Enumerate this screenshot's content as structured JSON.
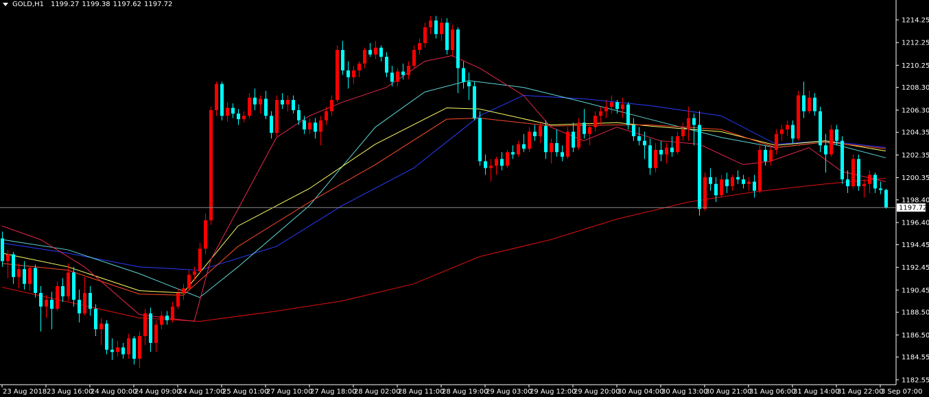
{
  "chart_data": {
    "type": "candlestick",
    "title": "GOLD,H1",
    "up_color": "#ff0000",
    "down_color": "#00ffff",
    "ylim": [
      1182.12,
      1216.0
    ],
    "yticks": [
      1214.25,
      1212.25,
      1210.25,
      {
        "value": 1208.3,
        "label": "1208.30"
      },
      {
        "value": 1206.3,
        "label": "1206.30"
      },
      1204.35,
      1202.35,
      1200.35,
      {
        "value": 1198.4,
        "label": "1198.40"
      },
      {
        "value": 1196.4,
        "label": "1196.40"
      },
      1194.45,
      1192.45,
      1190.45,
      {
        "value": 1188.5,
        "label": "1188.50"
      },
      {
        "value": 1186.5,
        "label": "1186.50"
      },
      1184.55,
      1182.55
    ],
    "xticks": [
      {
        "value": 0,
        "label": "23 Aug 2018"
      },
      {
        "value": 8,
        "label": "23 Aug 16:00"
      },
      {
        "value": 16,
        "label": "24 Aug 00:00"
      },
      {
        "value": 24,
        "label": "24 Aug 09:00"
      },
      {
        "value": 32,
        "label": "24 Aug 17:00"
      },
      {
        "value": 40,
        "label": "25 Aug 01:00"
      },
      {
        "value": 48,
        "label": "27 Aug 10:00"
      },
      {
        "value": 56,
        "label": "27 Aug 18:00"
      },
      {
        "value": 64,
        "label": "28 Aug 02:00"
      },
      {
        "value": 72,
        "label": "28 Aug 11:00"
      },
      {
        "value": 80,
        "label": "28 Aug 19:00"
      },
      {
        "value": 88,
        "label": "29 Aug 03:00"
      },
      {
        "value": 96,
        "label": "29 Aug 12:00"
      },
      {
        "value": 104,
        "label": "29 Aug 20:00"
      },
      {
        "value": 112,
        "label": "30 Aug 04:00"
      },
      {
        "value": 120,
        "label": "30 Aug 13:00"
      },
      {
        "value": 128,
        "label": "30 Aug 21:00"
      },
      {
        "value": 136,
        "label": "31 Aug 06:00"
      },
      {
        "value": 144,
        "label": "31 Aug 14:00"
      },
      {
        "value": 152,
        "label": "31 Aug 22:00"
      },
      {
        "value": 160,
        "label": "3 Sep 07:00"
      }
    ],
    "ohlc": [
      [
        1195.0,
        1195.6,
        1192.5,
        1193.0
      ],
      [
        1193.0,
        1194.0,
        1191.5,
        1193.6
      ],
      [
        1193.6,
        1193.8,
        1191.0,
        1191.6
      ],
      [
        1191.6,
        1192.8,
        1190.6,
        1192.3
      ],
      [
        1192.3,
        1193.0,
        1190.5,
        1191.0
      ],
      [
        1191.0,
        1192.6,
        1190.4,
        1192.4
      ],
      [
        1192.4,
        1192.7,
        1189.8,
        1190.2
      ],
      [
        1190.2,
        1190.8,
        1186.8,
        1189.0
      ],
      [
        1189.0,
        1190.0,
        1188.0,
        1189.6
      ],
      [
        1189.6,
        1190.3,
        1187.0,
        1188.8
      ],
      [
        1188.8,
        1191.2,
        1188.6,
        1190.8
      ],
      [
        1190.8,
        1191.5,
        1189.4,
        1189.9
      ],
      [
        1189.9,
        1192.8,
        1189.5,
        1192.0
      ],
      [
        1192.0,
        1192.5,
        1189.0,
        1189.6
      ],
      [
        1189.6,
        1190.5,
        1187.6,
        1188.4
      ],
      [
        1188.4,
        1191.6,
        1188.2,
        1190.2
      ],
      [
        1190.2,
        1190.8,
        1188.2,
        1188.8
      ],
      [
        1188.8,
        1189.2,
        1186.4,
        1187.0
      ],
      [
        1187.0,
        1188.0,
        1185.6,
        1187.5
      ],
      [
        1187.5,
        1187.8,
        1184.8,
        1185.2
      ],
      [
        1185.2,
        1186.2,
        1184.3,
        1185.0
      ],
      [
        1185.0,
        1186.0,
        1184.6,
        1185.4
      ],
      [
        1185.4,
        1185.8,
        1184.4,
        1184.8
      ],
      [
        1184.8,
        1186.6,
        1184.4,
        1186.2
      ],
      [
        1186.2,
        1186.4,
        1183.9,
        1184.4
      ],
      [
        1184.4,
        1186.8,
        1183.6,
        1186.4
      ],
      [
        1186.4,
        1188.8,
        1185.6,
        1188.4
      ],
      [
        1188.4,
        1188.9,
        1185.0,
        1185.8
      ],
      [
        1185.8,
        1187.8,
        1185.0,
        1187.4
      ],
      [
        1187.4,
        1188.6,
        1187.0,
        1188.2
      ],
      [
        1188.2,
        1188.6,
        1187.4,
        1187.8
      ],
      [
        1187.8,
        1189.4,
        1187.6,
        1189.0
      ],
      [
        1189.0,
        1190.6,
        1188.8,
        1190.2
      ],
      [
        1190.2,
        1191.0,
        1189.6,
        1190.6
      ],
      [
        1190.6,
        1192.2,
        1190.4,
        1191.8
      ],
      [
        1191.8,
        1192.5,
        1191.3,
        1192.1
      ],
      [
        1192.1,
        1194.6,
        1191.9,
        1194.1
      ],
      [
        1194.1,
        1197.2,
        1193.6,
        1196.6
      ],
      [
        1196.6,
        1206.6,
        1196.2,
        1206.3
      ],
      [
        1206.3,
        1208.8,
        1205.8,
        1208.6
      ],
      [
        1208.6,
        1208.8,
        1205.4,
        1205.8
      ],
      [
        1205.8,
        1207.0,
        1205.3,
        1206.5
      ],
      [
        1206.5,
        1206.9,
        1205.6,
        1206.0
      ],
      [
        1206.0,
        1206.4,
        1205.0,
        1205.5
      ],
      [
        1205.5,
        1206.2,
        1205.2,
        1205.8
      ],
      [
        1205.8,
        1207.8,
        1205.6,
        1207.4
      ],
      [
        1207.4,
        1208.2,
        1206.3,
        1206.8
      ],
      [
        1206.8,
        1207.6,
        1206.0,
        1207.3
      ],
      [
        1207.3,
        1208.0,
        1205.5,
        1205.8
      ],
      [
        1205.8,
        1206.2,
        1203.8,
        1204.3
      ],
      [
        1204.3,
        1207.6,
        1204.0,
        1207.2
      ],
      [
        1207.2,
        1207.8,
        1206.4,
        1206.8
      ],
      [
        1206.8,
        1207.6,
        1206.2,
        1207.2
      ],
      [
        1207.2,
        1207.6,
        1206.0,
        1206.3
      ],
      [
        1206.3,
        1206.8,
        1205.0,
        1205.4
      ],
      [
        1205.4,
        1205.8,
        1204.2,
        1204.6
      ],
      [
        1204.6,
        1205.6,
        1204.2,
        1205.2
      ],
      [
        1205.2,
        1205.6,
        1203.8,
        1204.4
      ],
      [
        1204.4,
        1205.8,
        1203.2,
        1205.4
      ],
      [
        1205.4,
        1206.6,
        1205.0,
        1206.2
      ],
      [
        1206.2,
        1207.6,
        1205.8,
        1207.2
      ],
      [
        1207.2,
        1212.0,
        1207.0,
        1211.6
      ],
      [
        1211.6,
        1212.4,
        1209.4,
        1209.8
      ],
      [
        1209.8,
        1210.6,
        1208.2,
        1209.2
      ],
      [
        1209.2,
        1210.2,
        1208.6,
        1209.8
      ],
      [
        1209.8,
        1210.6,
        1209.2,
        1210.4
      ],
      [
        1210.4,
        1211.8,
        1210.0,
        1211.6
      ],
      [
        1211.6,
        1212.2,
        1211.0,
        1211.2
      ],
      [
        1211.2,
        1212.4,
        1210.8,
        1211.8
      ],
      [
        1211.8,
        1212.0,
        1210.6,
        1211.0
      ],
      [
        1211.0,
        1211.4,
        1209.2,
        1209.6
      ],
      [
        1209.6,
        1210.2,
        1208.4,
        1208.8
      ],
      [
        1208.8,
        1210.0,
        1208.4,
        1209.7
      ],
      [
        1209.7,
        1210.4,
        1209.0,
        1209.4
      ],
      [
        1209.4,
        1210.6,
        1209.0,
        1210.2
      ],
      [
        1210.2,
        1212.0,
        1210.0,
        1211.6
      ],
      [
        1211.6,
        1212.6,
        1211.2,
        1212.2
      ],
      [
        1212.2,
        1214.0,
        1211.8,
        1213.6
      ],
      [
        1213.6,
        1214.6,
        1213.0,
        1214.2
      ],
      [
        1214.2,
        1214.6,
        1212.6,
        1213.0
      ],
      [
        1213.0,
        1214.4,
        1212.4,
        1214.0
      ],
      [
        1214.0,
        1214.4,
        1211.2,
        1211.6
      ],
      [
        1211.6,
        1213.8,
        1211.0,
        1213.4
      ],
      [
        1213.4,
        1213.6,
        1207.8,
        1210.0
      ],
      [
        1210.0,
        1210.6,
        1208.2,
        1208.8
      ],
      [
        1208.8,
        1209.6,
        1207.2,
        1208.4
      ],
      [
        1208.4,
        1208.8,
        1205.4,
        1205.6
      ],
      [
        1205.6,
        1206.2,
        1201.4,
        1201.8
      ],
      [
        1201.8,
        1202.4,
        1200.6,
        1201.2
      ],
      [
        1201.2,
        1202.0,
        1200.0,
        1201.4
      ],
      [
        1201.4,
        1202.2,
        1200.6,
        1202.0
      ],
      [
        1202.0,
        1202.6,
        1201.0,
        1201.4
      ],
      [
        1201.4,
        1202.8,
        1201.2,
        1202.6
      ],
      [
        1202.6,
        1203.2,
        1202.0,
        1202.4
      ],
      [
        1202.4,
        1203.6,
        1202.2,
        1203.3
      ],
      [
        1203.3,
        1204.2,
        1202.6,
        1202.9
      ],
      [
        1202.9,
        1204.8,
        1202.6,
        1204.4
      ],
      [
        1204.4,
        1205.0,
        1203.6,
        1204.0
      ],
      [
        1204.0,
        1205.2,
        1203.4,
        1204.9
      ],
      [
        1204.9,
        1205.4,
        1202.0,
        1202.6
      ],
      [
        1202.6,
        1203.8,
        1201.6,
        1203.4
      ],
      [
        1203.4,
        1204.6,
        1202.2,
        1202.6
      ],
      [
        1202.6,
        1203.2,
        1201.8,
        1202.2
      ],
      [
        1202.2,
        1204.8,
        1202.0,
        1204.4
      ],
      [
        1204.4,
        1205.2,
        1202.6,
        1203.0
      ],
      [
        1203.0,
        1205.6,
        1202.8,
        1205.2
      ],
      [
        1205.2,
        1206.4,
        1203.8,
        1204.2
      ],
      [
        1204.2,
        1205.2,
        1203.2,
        1204.8
      ],
      [
        1204.8,
        1206.2,
        1204.4,
        1205.8
      ],
      [
        1205.8,
        1206.6,
        1205.0,
        1206.2
      ],
      [
        1206.2,
        1207.2,
        1205.6,
        1206.6
      ],
      [
        1206.6,
        1207.6,
        1206.0,
        1207.0
      ],
      [
        1207.0,
        1207.2,
        1206.0,
        1206.4
      ],
      [
        1206.4,
        1207.4,
        1205.6,
        1206.8
      ],
      [
        1206.8,
        1207.0,
        1204.6,
        1205.0
      ],
      [
        1205.0,
        1205.6,
        1203.6,
        1204.0
      ],
      [
        1204.0,
        1204.8,
        1203.2,
        1203.6
      ],
      [
        1203.6,
        1204.4,
        1202.0,
        1203.2
      ],
      [
        1203.2,
        1203.8,
        1200.6,
        1201.2
      ],
      [
        1201.2,
        1203.4,
        1200.8,
        1202.8
      ],
      [
        1202.8,
        1203.6,
        1201.8,
        1202.4
      ],
      [
        1202.4,
        1203.4,
        1201.6,
        1203.0
      ],
      [
        1203.0,
        1204.0,
        1202.2,
        1202.6
      ],
      [
        1202.6,
        1204.4,
        1202.4,
        1204.0
      ],
      [
        1204.0,
        1205.2,
        1203.6,
        1204.6
      ],
      [
        1204.6,
        1206.6,
        1203.6,
        1205.6
      ],
      [
        1205.6,
        1206.0,
        1203.2,
        1205.0
      ],
      [
        1205.0,
        1206.2,
        1197.0,
        1197.6
      ],
      [
        1197.6,
        1200.8,
        1197.4,
        1200.4
      ],
      [
        1200.4,
        1201.2,
        1199.2,
        1199.8
      ],
      [
        1199.8,
        1200.4,
        1198.2,
        1198.8
      ],
      [
        1198.8,
        1200.6,
        1198.6,
        1200.2
      ],
      [
        1200.2,
        1200.8,
        1199.0,
        1199.6
      ],
      [
        1199.6,
        1200.6,
        1199.2,
        1200.4
      ],
      [
        1200.4,
        1201.0,
        1199.8,
        1200.2
      ],
      [
        1200.2,
        1200.6,
        1199.4,
        1199.8
      ],
      [
        1199.8,
        1200.4,
        1199.2,
        1200.0
      ],
      [
        1200.0,
        1200.6,
        1198.6,
        1199.2
      ],
      [
        1199.2,
        1203.4,
        1199.0,
        1202.8
      ],
      [
        1202.8,
        1203.2,
        1201.4,
        1201.8
      ],
      [
        1201.8,
        1203.2,
        1201.4,
        1202.8
      ],
      [
        1202.8,
        1204.6,
        1202.4,
        1204.2
      ],
      [
        1204.2,
        1205.0,
        1203.6,
        1204.6
      ],
      [
        1204.6,
        1205.4,
        1204.0,
        1205.0
      ],
      [
        1205.0,
        1205.4,
        1203.4,
        1203.8
      ],
      [
        1203.8,
        1208.0,
        1203.6,
        1207.6
      ],
      [
        1207.6,
        1208.8,
        1205.6,
        1206.2
      ],
      [
        1206.2,
        1208.0,
        1206.0,
        1207.4
      ],
      [
        1207.4,
        1207.8,
        1205.8,
        1206.2
      ],
      [
        1206.2,
        1206.6,
        1202.6,
        1203.2
      ],
      [
        1203.2,
        1204.2,
        1200.8,
        1202.4
      ],
      [
        1202.4,
        1205.0,
        1202.2,
        1204.6
      ],
      [
        1204.6,
        1205.0,
        1203.2,
        1203.6
      ],
      [
        1203.6,
        1204.0,
        1199.8,
        1200.2
      ],
      [
        1200.2,
        1201.0,
        1199.0,
        1199.6
      ],
      [
        1199.6,
        1202.4,
        1199.4,
        1202.0
      ],
      [
        1202.0,
        1202.4,
        1199.2,
        1199.6
      ],
      [
        1199.6,
        1200.2,
        1198.6,
        1199.8
      ],
      [
        1199.8,
        1201.0,
        1199.0,
        1200.6
      ],
      [
        1200.6,
        1200.8,
        1199.0,
        1199.4
      ],
      [
        1199.4,
        1200.0,
        1198.9,
        1199.27
      ],
      [
        1199.27,
        1199.38,
        1197.62,
        1197.72
      ]
    ],
    "series": [
      {
        "color": "#e01010",
        "x": [
          0,
          25,
          36,
          50,
          62,
          75,
          87,
          100,
          112,
          125,
          137,
          150,
          161
        ],
        "values": [
          1190.7,
          1188.0,
          1187.7,
          1188.6,
          1189.5,
          1191.0,
          1193.4,
          1194.9,
          1196.7,
          1198.2,
          1199.1,
          1199.8,
          1200.3
        ]
      },
      {
        "color": "#2a3cff",
        "x": [
          0,
          12,
          25,
          36,
          50,
          62,
          75,
          87,
          95,
          106,
          118,
          131,
          141,
          150,
          161
        ],
        "values": [
          1194.6,
          1193.7,
          1192.5,
          1192.2,
          1194.3,
          1197.9,
          1201.2,
          1205.8,
          1207.6,
          1207.3,
          1206.7,
          1205.8,
          1203.3,
          1203.6,
          1203.0
        ]
      },
      {
        "color": "#5fd8d8",
        "x": [
          0,
          12,
          25,
          36,
          43,
          56,
          68,
          77,
          85,
          95,
          106,
          118,
          131,
          141,
          150,
          161
        ],
        "values": [
          1194.9,
          1194.0,
          1191.9,
          1189.8,
          1192.5,
          1197.9,
          1204.8,
          1207.9,
          1208.9,
          1208.3,
          1207.0,
          1205.5,
          1203.9,
          1203.0,
          1203.5,
          1202.1
        ]
      },
      {
        "color": "#ffff66",
        "x": [
          0,
          12,
          25,
          33,
          43,
          56,
          68,
          81,
          87,
          100,
          112,
          118,
          131,
          141,
          150,
          161
        ],
        "values": [
          1193.7,
          1192.5,
          1190.4,
          1190.2,
          1196.1,
          1199.4,
          1203.3,
          1206.5,
          1206.4,
          1205.0,
          1205.2,
          1204.9,
          1204.4,
          1203.2,
          1203.6,
          1202.7
        ]
      },
      {
        "color": "#ff4a2a",
        "x": [
          0,
          12,
          25,
          33,
          43,
          56,
          68,
          81,
          87,
          100,
          112,
          118,
          131,
          141,
          150,
          161
        ],
        "values": [
          1192.8,
          1192.2,
          1190.1,
          1190.0,
          1194.3,
          1198.2,
          1201.5,
          1205.5,
          1205.6,
          1204.9,
          1205.0,
          1205.0,
          1204.6,
          1203.0,
          1203.5,
          1202.9
        ]
      },
      {
        "color": "#e8284d",
        "x": [
          0,
          7,
          15,
          25,
          35,
          38,
          50,
          56,
          62,
          70,
          77,
          82,
          87,
          95,
          100,
          106,
          112,
          120,
          127,
          135,
          140,
          147,
          153,
          161
        ],
        "values": [
          1196.1,
          1194.9,
          1192.5,
          1188.3,
          1187.7,
          1193.1,
          1203.9,
          1205.8,
          1207.0,
          1208.3,
          1210.6,
          1211.1,
          1210.0,
          1207.6,
          1204.8,
          1203.6,
          1204.8,
          1203.6,
          1203.3,
          1201.5,
          1201.8,
          1203.0,
          1200.9,
          1200.0
        ]
      }
    ]
  }
}
